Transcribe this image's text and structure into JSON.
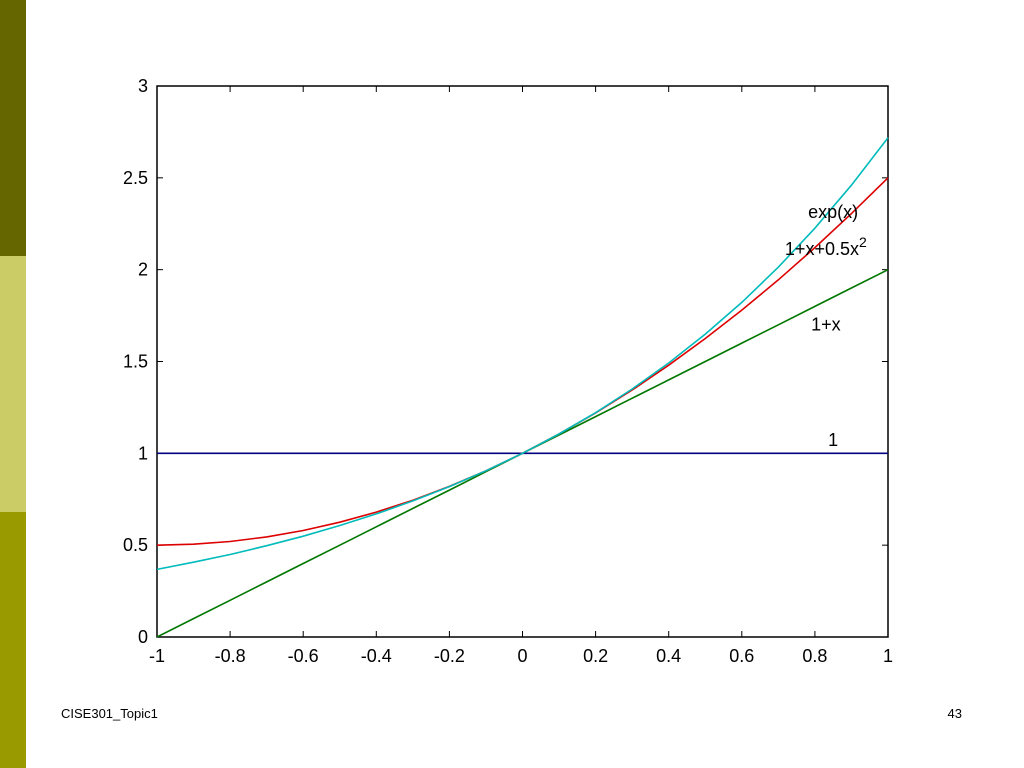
{
  "slide": {
    "footer_left": "CISE301_Topic1",
    "page_number": "43",
    "band_colors": [
      "#666600",
      "#cccc66",
      "#999900"
    ]
  },
  "chart_data": {
    "type": "line",
    "title": "",
    "xlabel": "",
    "ylabel": "",
    "xlim": [
      -1,
      1
    ],
    "ylim": [
      0,
      3
    ],
    "x_ticks": [
      "-1",
      "-0.8",
      "-0.6",
      "-0.4",
      "-0.2",
      "0",
      "0.2",
      "0.4",
      "0.6",
      "0.8",
      "1"
    ],
    "y_ticks": [
      "0",
      "0.5",
      "1",
      "1.5",
      "2",
      "2.5",
      "3"
    ],
    "grid": false,
    "x": [
      -1,
      -0.9,
      -0.8,
      -0.7,
      -0.6,
      -0.5,
      -0.4,
      -0.3,
      -0.2,
      -0.1,
      0,
      0.1,
      0.2,
      0.3,
      0.4,
      0.5,
      0.6,
      0.7,
      0.8,
      0.9,
      1
    ],
    "series": [
      {
        "name": "1",
        "color": "#000080",
        "values": [
          1,
          1,
          1,
          1,
          1,
          1,
          1,
          1,
          1,
          1,
          1,
          1,
          1,
          1,
          1,
          1,
          1,
          1,
          1,
          1,
          1
        ]
      },
      {
        "name": "1+x",
        "color": "#007700",
        "values": [
          0,
          0.1,
          0.2,
          0.3,
          0.4,
          0.5,
          0.6,
          0.7,
          0.8,
          0.9,
          1,
          1.1,
          1.2,
          1.3,
          1.4,
          1.5,
          1.6,
          1.7,
          1.8,
          1.9,
          2
        ]
      },
      {
        "name": "1+x+0.5x2",
        "color": "#dd0000",
        "values": [
          0.5,
          0.505,
          0.52,
          0.545,
          0.58,
          0.625,
          0.68,
          0.745,
          0.82,
          0.905,
          1,
          1.105,
          1.22,
          1.345,
          1.48,
          1.625,
          1.78,
          1.945,
          2.12,
          2.305,
          2.5
        ]
      },
      {
        "name": "exp(x)",
        "color": "#00bbbb",
        "values": [
          0.368,
          0.407,
          0.449,
          0.497,
          0.549,
          0.607,
          0.67,
          0.741,
          0.819,
          0.905,
          1,
          1.105,
          1.221,
          1.35,
          1.492,
          1.649,
          1.822,
          2.014,
          2.226,
          2.46,
          2.718
        ]
      }
    ],
    "annotations": [
      {
        "text": "exp(x)",
        "series": "exp(x)",
        "x": 0.85,
        "y": 2.28
      },
      {
        "text": "1+x+0.5x",
        "sup": "2",
        "series": "1+x+0.5x2",
        "x": 0.83,
        "y": 2.08
      },
      {
        "text": "1+x",
        "series": "1+x",
        "x": 0.83,
        "y": 1.67
      },
      {
        "text": "1",
        "series": "1",
        "x": 0.85,
        "y": 1.04
      }
    ]
  }
}
